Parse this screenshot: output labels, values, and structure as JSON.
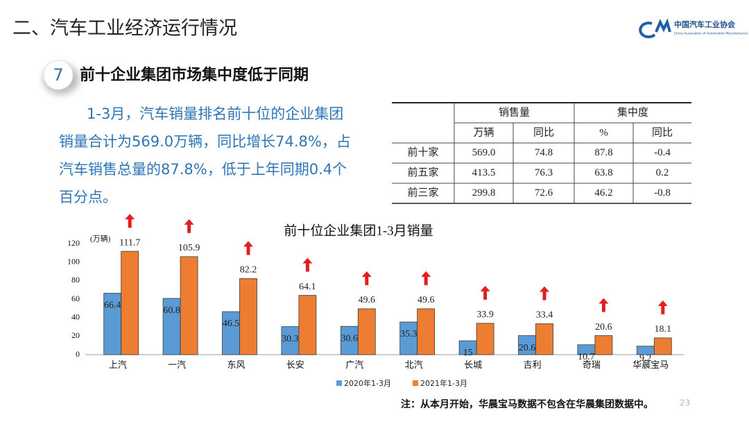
{
  "header": {
    "title": "二、汽车工业经济运行情况",
    "logo_name": "中国汽车工业协会",
    "logo_subtitle": "China Association of Automobile Manufacturers"
  },
  "section": {
    "number": "7",
    "title": "前十企业集团市场集中度低于同期"
  },
  "paragraph": {
    "lines": [
      "1-3月，汽车销量排名前十位的企业集团",
      "销量合计为569.0万辆，同比增长74.8%，占",
      "汽车销售总量的87.8%，低于上年同期0.4个",
      "百分点。"
    ]
  },
  "table": {
    "header_groups": [
      "销售量",
      "集中度"
    ],
    "header_units": [
      "万辆",
      "同比",
      "%",
      "同比"
    ],
    "rows": [
      [
        "前十家",
        "569.0",
        "74.8",
        "87.8",
        "-0.4"
      ],
      [
        "前五家",
        "413.5",
        "76.3",
        "63.8",
        "0.2"
      ],
      [
        "前三家",
        "299.8",
        "72.6",
        "46.2",
        "-0.8"
      ]
    ]
  },
  "chart_data": {
    "type": "bar",
    "title": "前十位企业集团1-3月销量",
    "y_unit": "(万辆)",
    "categories": [
      "上汽",
      "一汽",
      "东风",
      "长安",
      "广汽",
      "北汽",
      "长城",
      "吉利",
      "奇瑞",
      "华晨宝马"
    ],
    "series": [
      {
        "name": "2020年1-3月",
        "color": "#5b9bd5",
        "values": [
          66.4,
          60.8,
          46.5,
          30.3,
          30.6,
          35.3,
          15.0,
          20.6,
          10.7,
          9.2
        ]
      },
      {
        "name": "2021年1-3月",
        "color": "#ed7d31",
        "values": [
          111.7,
          105.9,
          82.2,
          64.1,
          49.6,
          49.6,
          33.9,
          33.4,
          20.6,
          18.1
        ]
      }
    ],
    "ylim": [
      0,
      120
    ],
    "yticks": [
      0,
      20,
      40,
      60,
      80,
      100,
      120
    ]
  },
  "note": "注：从本月开始，华晨宝马数据不包含在华晨集团数据中。",
  "page_number": "23"
}
